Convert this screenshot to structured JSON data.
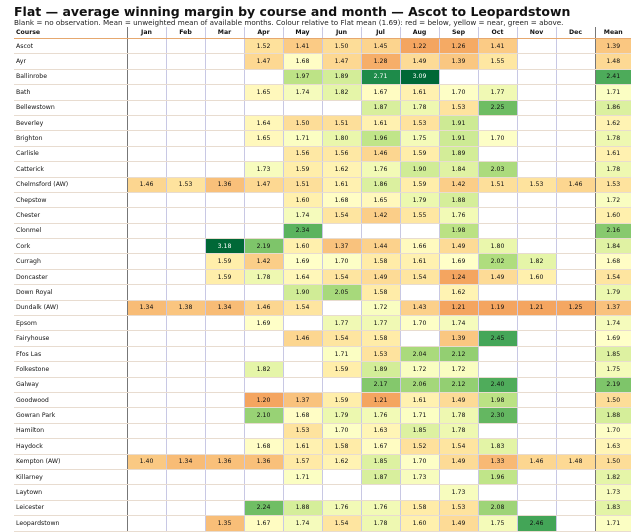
{
  "title": "Flat — average winning margin by course and month — Ascot to Leopardstown",
  "subtitle": "Blank = no observation. Mean = unweighted mean of available months. Colour relative to Flat mean (1.69): red = below, yellow = near, green = above.",
  "chart_data": {
    "type": "table",
    "columns": [
      "Course",
      "Jan",
      "Feb",
      "Mar",
      "Apr",
      "May",
      "Jun",
      "Jul",
      "Aug",
      "Sep",
      "Oct",
      "Nov",
      "Dec",
      "Mean"
    ],
    "reference_mean": 1.69,
    "rows": [
      {
        "course": "Ascot",
        "values": [
          null,
          null,
          null,
          1.52,
          1.41,
          1.5,
          1.45,
          1.22,
          1.26,
          1.41,
          null,
          null
        ],
        "mean": 1.39
      },
      {
        "course": "Ayr",
        "values": [
          null,
          null,
          null,
          1.47,
          1.68,
          1.47,
          1.28,
          1.49,
          1.39,
          1.55,
          null,
          null
        ],
        "mean": 1.48
      },
      {
        "course": "Ballinrobe",
        "values": [
          null,
          null,
          null,
          null,
          1.97,
          1.89,
          2.71,
          3.09,
          null,
          null,
          null,
          null
        ],
        "mean": 2.41
      },
      {
        "course": "Bath",
        "values": [
          null,
          null,
          null,
          1.65,
          1.74,
          1.82,
          1.67,
          1.61,
          1.7,
          1.77,
          null,
          null
        ],
        "mean": 1.71
      },
      {
        "course": "Bellewstown",
        "values": [
          null,
          null,
          null,
          null,
          null,
          null,
          1.87,
          1.78,
          1.53,
          2.25,
          null,
          null
        ],
        "mean": 1.86
      },
      {
        "course": "Beverley",
        "values": [
          null,
          null,
          null,
          1.64,
          1.5,
          1.51,
          1.61,
          1.53,
          1.91,
          null,
          null,
          null
        ],
        "mean": 1.62
      },
      {
        "course": "Brighton",
        "values": [
          null,
          null,
          null,
          1.65,
          1.71,
          1.8,
          1.96,
          1.75,
          1.91,
          1.7,
          null,
          null
        ],
        "mean": 1.78
      },
      {
        "course": "Carlisle",
        "values": [
          null,
          null,
          null,
          null,
          1.56,
          1.56,
          1.46,
          1.59,
          1.89,
          null,
          null,
          null
        ],
        "mean": 1.61
      },
      {
        "course": "Catterick",
        "values": [
          null,
          null,
          null,
          1.73,
          1.59,
          1.62,
          1.76,
          1.9,
          1.84,
          2.03,
          null,
          null
        ],
        "mean": 1.78
      },
      {
        "course": "Chelmsford (AW)",
        "values": [
          1.46,
          1.53,
          1.36,
          1.47,
          1.51,
          1.61,
          1.86,
          1.59,
          1.42,
          1.51,
          1.53,
          1.46
        ],
        "mean": 1.53
      },
      {
        "course": "Chepstow",
        "values": [
          null,
          null,
          null,
          null,
          1.6,
          1.68,
          1.65,
          1.79,
          1.88,
          null,
          null,
          null
        ],
        "mean": 1.72
      },
      {
        "course": "Chester",
        "values": [
          null,
          null,
          null,
          null,
          1.74,
          1.54,
          1.42,
          1.55,
          1.76,
          null,
          null,
          null
        ],
        "mean": 1.6
      },
      {
        "course": "Clonmel",
        "values": [
          null,
          null,
          null,
          null,
          2.34,
          null,
          null,
          null,
          1.98,
          null,
          null,
          null
        ],
        "mean": 2.16
      },
      {
        "course": "Cork",
        "values": [
          null,
          null,
          3.18,
          2.19,
          1.6,
          1.37,
          1.44,
          1.66,
          1.49,
          1.8,
          null,
          null
        ],
        "mean": 1.84
      },
      {
        "course": "Curragh",
        "values": [
          null,
          null,
          1.59,
          1.42,
          1.69,
          1.7,
          1.58,
          1.61,
          1.69,
          2.02,
          1.82,
          null
        ],
        "mean": 1.68
      },
      {
        "course": "Doncaster",
        "values": [
          null,
          null,
          1.59,
          1.78,
          1.64,
          1.54,
          1.49,
          1.54,
          1.24,
          1.49,
          1.6,
          null
        ],
        "mean": 1.54
      },
      {
        "course": "Down Royal",
        "values": [
          null,
          null,
          null,
          null,
          1.9,
          2.05,
          1.58,
          null,
          1.62,
          null,
          null,
          null
        ],
        "mean": 1.79
      },
      {
        "course": "Dundalk (AW)",
        "values": [
          1.34,
          1.38,
          1.34,
          1.46,
          1.54,
          null,
          1.72,
          1.43,
          1.21,
          1.19,
          1.21,
          1.25
        ],
        "mean": 1.37
      },
      {
        "course": "Epsom",
        "values": [
          null,
          null,
          null,
          1.69,
          null,
          1.77,
          1.77,
          1.7,
          1.74,
          null,
          null,
          null
        ],
        "mean": 1.74
      },
      {
        "course": "Fairyhouse",
        "values": [
          null,
          null,
          null,
          null,
          1.46,
          1.54,
          1.58,
          null,
          1.39,
          2.45,
          null,
          null
        ],
        "mean": 1.69
      },
      {
        "course": "Ffos Las",
        "values": [
          null,
          null,
          null,
          null,
          null,
          1.71,
          1.53,
          2.04,
          2.12,
          null,
          null,
          null
        ],
        "mean": 1.85
      },
      {
        "course": "Folkestone",
        "values": [
          null,
          null,
          null,
          1.82,
          null,
          1.59,
          1.89,
          1.72,
          1.72,
          null,
          null,
          null
        ],
        "mean": 1.75
      },
      {
        "course": "Galway",
        "values": [
          null,
          null,
          null,
          null,
          null,
          null,
          2.17,
          2.06,
          2.12,
          2.4,
          null,
          null
        ],
        "mean": 2.19
      },
      {
        "course": "Goodwood",
        "values": [
          null,
          null,
          null,
          1.2,
          1.37,
          1.59,
          1.21,
          1.61,
          1.49,
          1.98,
          null,
          null
        ],
        "mean": 1.5
      },
      {
        "course": "Gowran Park",
        "values": [
          null,
          null,
          null,
          2.1,
          1.68,
          1.79,
          1.76,
          1.71,
          1.78,
          2.3,
          null,
          null
        ],
        "mean": 1.88
      },
      {
        "course": "Hamilton",
        "values": [
          null,
          null,
          null,
          null,
          1.53,
          1.7,
          1.63,
          1.85,
          1.78,
          null,
          null,
          null
        ],
        "mean": 1.7
      },
      {
        "course": "Haydock",
        "values": [
          null,
          null,
          null,
          1.68,
          1.61,
          1.58,
          1.67,
          1.52,
          1.54,
          1.83,
          null,
          null
        ],
        "mean": 1.63
      },
      {
        "course": "Kempton (AW)",
        "values": [
          1.4,
          1.34,
          1.36,
          1.36,
          1.57,
          1.62,
          1.85,
          1.7,
          1.49,
          1.33,
          1.46,
          1.48
        ],
        "mean": 1.5
      },
      {
        "course": "Killarney",
        "values": [
          null,
          null,
          null,
          null,
          1.71,
          null,
          1.87,
          1.73,
          null,
          1.96,
          null,
          null
        ],
        "mean": 1.82
      },
      {
        "course": "Laytown",
        "values": [
          null,
          null,
          null,
          null,
          null,
          null,
          null,
          null,
          1.73,
          null,
          null,
          null
        ],
        "mean": 1.73
      },
      {
        "course": "Leicester",
        "values": [
          null,
          null,
          null,
          2.24,
          1.88,
          1.76,
          1.76,
          1.58,
          1.53,
          2.08,
          null,
          null
        ],
        "mean": 1.83
      },
      {
        "course": "Leopardstown",
        "values": [
          null,
          null,
          1.35,
          1.67,
          1.74,
          1.54,
          1.78,
          1.6,
          1.49,
          1.75,
          2.46,
          null
        ],
        "mean": 1.71
      }
    ]
  }
}
